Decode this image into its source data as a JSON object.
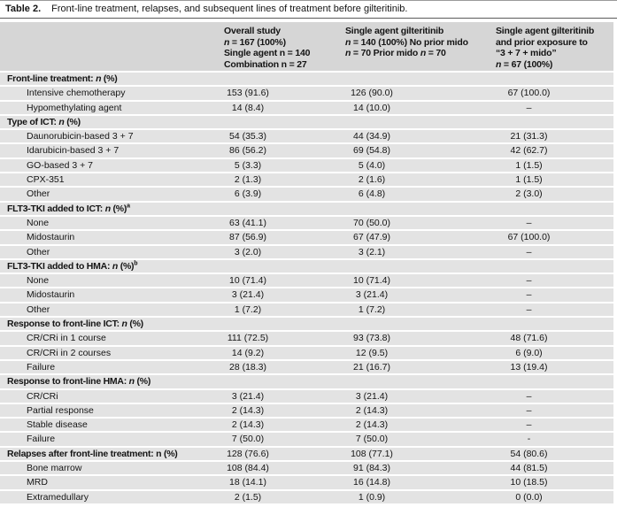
{
  "title": {
    "label": "Table 2.",
    "text": "Front-line treatment, relapses, and subsequent lines of treatment before gilteritinib."
  },
  "table": {
    "columns": [
      {
        "lines": [
          {
            "text": "Overall study",
            "italic_n": false
          },
          {
            "text": "n = 167 (100%)",
            "italic_n": true
          },
          {
            "text": "Single agent n = 140",
            "italic_n": false
          },
          {
            "text": "Combination n = 27",
            "italic_n": false
          }
        ]
      },
      {
        "lines": [
          {
            "text": "Single agent gilteritinib",
            "italic_n": false
          },
          {
            "text": "n = 140 (100%) No prior mido",
            "italic_n": true
          },
          {
            "text": "n = 70 Prior mido n = 70",
            "italic_n": true
          }
        ]
      },
      {
        "lines": [
          {
            "text": "Single agent gilteritinib",
            "italic_n": false
          },
          {
            "text": "and prior exposure to",
            "italic_n": false
          },
          {
            "text": "“3 + 7 + mido”",
            "italic_n": false
          },
          {
            "text": "n = 67 (100%)",
            "italic_n": true
          }
        ]
      }
    ],
    "rows": [
      {
        "type": "section",
        "label": "Front-line treatment: n (%)",
        "italic_n": true,
        "values": [
          "",
          "",
          ""
        ]
      },
      {
        "type": "item",
        "label": "Intensive chemotherapy",
        "values": [
          "153 (91.6)",
          "126 (90.0)",
          "67 (100.0)"
        ]
      },
      {
        "type": "item",
        "label": "Hypomethylating agent",
        "values": [
          "14 (8.4)",
          "14 (10.0)",
          "–"
        ]
      },
      {
        "type": "section",
        "label": "Type of ICT: n (%)",
        "italic_n": true,
        "values": [
          "",
          "",
          ""
        ]
      },
      {
        "type": "item",
        "label": "Daunorubicin-based 3 + 7",
        "values": [
          "54 (35.3)",
          "44 (34.9)",
          "21 (31.3)"
        ]
      },
      {
        "type": "item",
        "label": "Idarubicin-based 3 + 7",
        "values": [
          "86 (56.2)",
          "69 (54.8)",
          "42 (62.7)"
        ]
      },
      {
        "type": "item",
        "label": "GO-based 3 + 7",
        "values": [
          "5 (3.3)",
          "5 (4.0)",
          "1 (1.5)"
        ]
      },
      {
        "type": "item",
        "label": "CPX-351",
        "values": [
          "2 (1.3)",
          "2 (1.6)",
          "1 (1.5)"
        ]
      },
      {
        "type": "item",
        "label": "Other",
        "values": [
          "6 (3.9)",
          "6 (4.8)",
          "2 (3.0)"
        ]
      },
      {
        "type": "section",
        "label": "FLT3-TKI added to ICT: n (%)",
        "sup": "a",
        "italic_n": true,
        "values": [
          "",
          "",
          ""
        ]
      },
      {
        "type": "item",
        "label": "None",
        "values": [
          "63 (41.1)",
          "70 (50.0)",
          "–"
        ]
      },
      {
        "type": "item",
        "label": "Midostaurin",
        "values": [
          "87 (56.9)",
          "67 (47.9)",
          "67 (100.0)"
        ]
      },
      {
        "type": "item",
        "label": "Other",
        "values": [
          "3 (2.0)",
          "3 (2.1)",
          "–"
        ]
      },
      {
        "type": "section",
        "label": "FLT3-TKI added to HMA: n (%)",
        "sup": "b",
        "italic_n": true,
        "values": [
          "",
          "",
          ""
        ]
      },
      {
        "type": "item",
        "label": "None",
        "values": [
          "10 (71.4)",
          "10 (71.4)",
          "–"
        ]
      },
      {
        "type": "item",
        "label": "Midostaurin",
        "values": [
          "3 (21.4)",
          "3 (21.4)",
          "–"
        ]
      },
      {
        "type": "item",
        "label": "Other",
        "values": [
          "1 (7.2)",
          "1 (7.2)",
          "–"
        ]
      },
      {
        "type": "section",
        "label": "Response to front-line ICT: n (%)",
        "italic_n": true,
        "values": [
          "",
          "",
          ""
        ]
      },
      {
        "type": "item",
        "label": "CR/CRi in 1 course",
        "values": [
          "111 (72.5)",
          "93 (73.8)",
          "48 (71.6)"
        ]
      },
      {
        "type": "item",
        "label": "CR/CRi in 2 courses",
        "values": [
          "14 (9.2)",
          "12 (9.5)",
          "6 (9.0)"
        ]
      },
      {
        "type": "item",
        "label": "Failure",
        "values": [
          "28 (18.3)",
          "21 (16.7)",
          "13 (19.4)"
        ]
      },
      {
        "type": "section",
        "label": "Response to front-line HMA: n (%)",
        "italic_n": true,
        "values": [
          "",
          "",
          ""
        ]
      },
      {
        "type": "item",
        "label": "CR/CRi",
        "values": [
          "3 (21.4)",
          "3 (21.4)",
          "–"
        ]
      },
      {
        "type": "item",
        "label": "Partial response",
        "values": [
          "2 (14.3)",
          "2 (14.3)",
          "–"
        ]
      },
      {
        "type": "item",
        "label": "Stable disease",
        "values": [
          "2 (14.3)",
          "2 (14.3)",
          "–"
        ]
      },
      {
        "type": "item",
        "label": "Failure",
        "values": [
          "7 (50.0)",
          "7 (50.0)",
          "-"
        ]
      },
      {
        "type": "section",
        "label": "Relapses after front-line treatment: n (%)",
        "italic_n": false,
        "values": [
          "128 (76.6)",
          "108 (77.1)",
          "54 (80.6)"
        ]
      },
      {
        "type": "item",
        "label": "Bone marrow",
        "values": [
          "108 (84.4)",
          "91 (84.3)",
          "44 (81.5)"
        ]
      },
      {
        "type": "item",
        "label": "MRD",
        "values": [
          "18 (14.1)",
          "16 (14.8)",
          "10 (18.5)"
        ]
      },
      {
        "type": "item",
        "label": "Extramedullary",
        "values": [
          "2 (1.5)",
          "1 (0.9)",
          "0 (0.0)"
        ]
      }
    ]
  }
}
